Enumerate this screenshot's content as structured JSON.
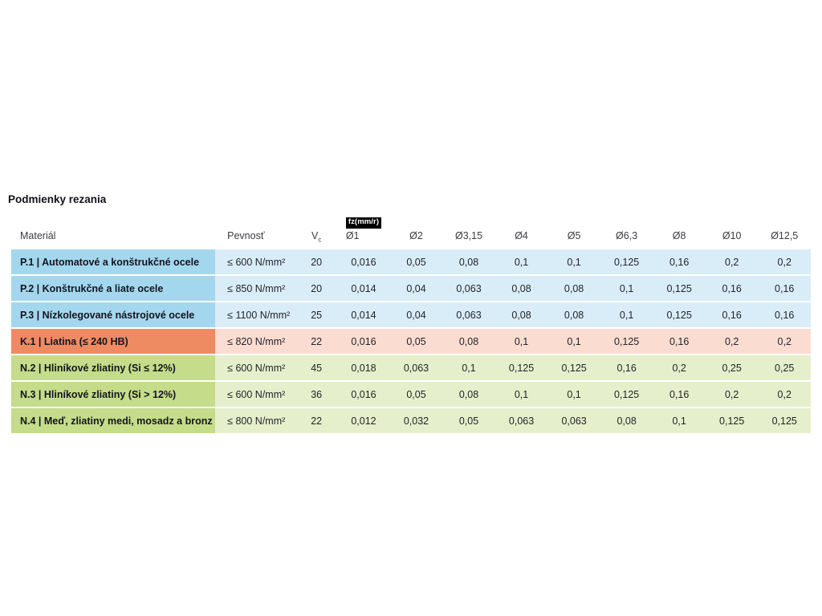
{
  "page": {
    "title": "Podmienky rezania"
  },
  "colors": {
    "steel_dark": "#a3d7ee",
    "steel_light": "#d9edf8",
    "cast_iron_dark": "#ee8b63",
    "cast_iron_light": "#fadcd1",
    "nonferrous_dark": "#c5dc8a",
    "nonferrous_light": "#e6efcb",
    "badge_bg": "#000000",
    "badge_text": "#ffffff",
    "text": "#23232b"
  },
  "table": {
    "headers": {
      "material": "Materiál",
      "strength": "Pevnosť",
      "vc_base": "V",
      "vc_sub": "c",
      "fz_badge": "fz(mm/r)",
      "diameters": [
        "Ø1",
        "Ø2",
        "Ø3,15",
        "Ø4",
        "Ø5",
        "Ø6,3",
        "Ø8",
        "Ø10",
        "Ø12,5"
      ]
    },
    "rows": [
      {
        "material": "P.1 | Automatové a konštrukčné ocele",
        "strength": "≤ 600 N/mm²",
        "vc": "20",
        "fz": [
          "0,016",
          "0,05",
          "0,08",
          "0,1",
          "0,1",
          "0,125",
          "0,16",
          "0,2",
          "0,2"
        ]
      },
      {
        "material": "P.2 | Konštrukčné a liate ocele",
        "strength": "≤ 850 N/mm²",
        "vc": "20",
        "fz": [
          "0,014",
          "0,04",
          "0,063",
          "0,08",
          "0,08",
          "0,1",
          "0,125",
          "0,16",
          "0,16"
        ]
      },
      {
        "material": "P.3 | Nízkolegované nástrojové ocele",
        "strength": "≤ 1100 N/mm²",
        "vc": "25",
        "fz": [
          "0,014",
          "0,04",
          "0,063",
          "0,08",
          "0,08",
          "0,1",
          "0,125",
          "0,16",
          "0,16"
        ]
      },
      {
        "material": "K.1 | Liatina (≤ 240 HB)",
        "strength": "≤ 820 N/mm²",
        "vc": "22",
        "fz": [
          "0,016",
          "0,05",
          "0,08",
          "0,1",
          "0,1",
          "0,125",
          "0,16",
          "0,2",
          "0,2"
        ]
      },
      {
        "material": "N.2 | Hliníkové zliatiny (Si ≤ 12%)",
        "strength": "≤ 600 N/mm²",
        "vc": "45",
        "fz": [
          "0,018",
          "0,063",
          "0,1",
          "0,125",
          "0,125",
          "0,16",
          "0,2",
          "0,25",
          "0,25"
        ]
      },
      {
        "material": "N.3 | Hliníkové zliatiny (Si > 12%)",
        "strength": "≤ 600 N/mm²",
        "vc": "36",
        "fz": [
          "0,016",
          "0,05",
          "0,08",
          "0,1",
          "0,1",
          "0,125",
          "0,16",
          "0,2",
          "0,2"
        ]
      },
      {
        "material": "N.4 | Meď, zliatiny medi, mosadz a bronz",
        "strength": "≤ 800 N/mm²",
        "vc": "22",
        "fz": [
          "0,012",
          "0,032",
          "0,05",
          "0,063",
          "0,063",
          "0,08",
          "0,1",
          "0,125",
          "0,125"
        ]
      }
    ]
  }
}
